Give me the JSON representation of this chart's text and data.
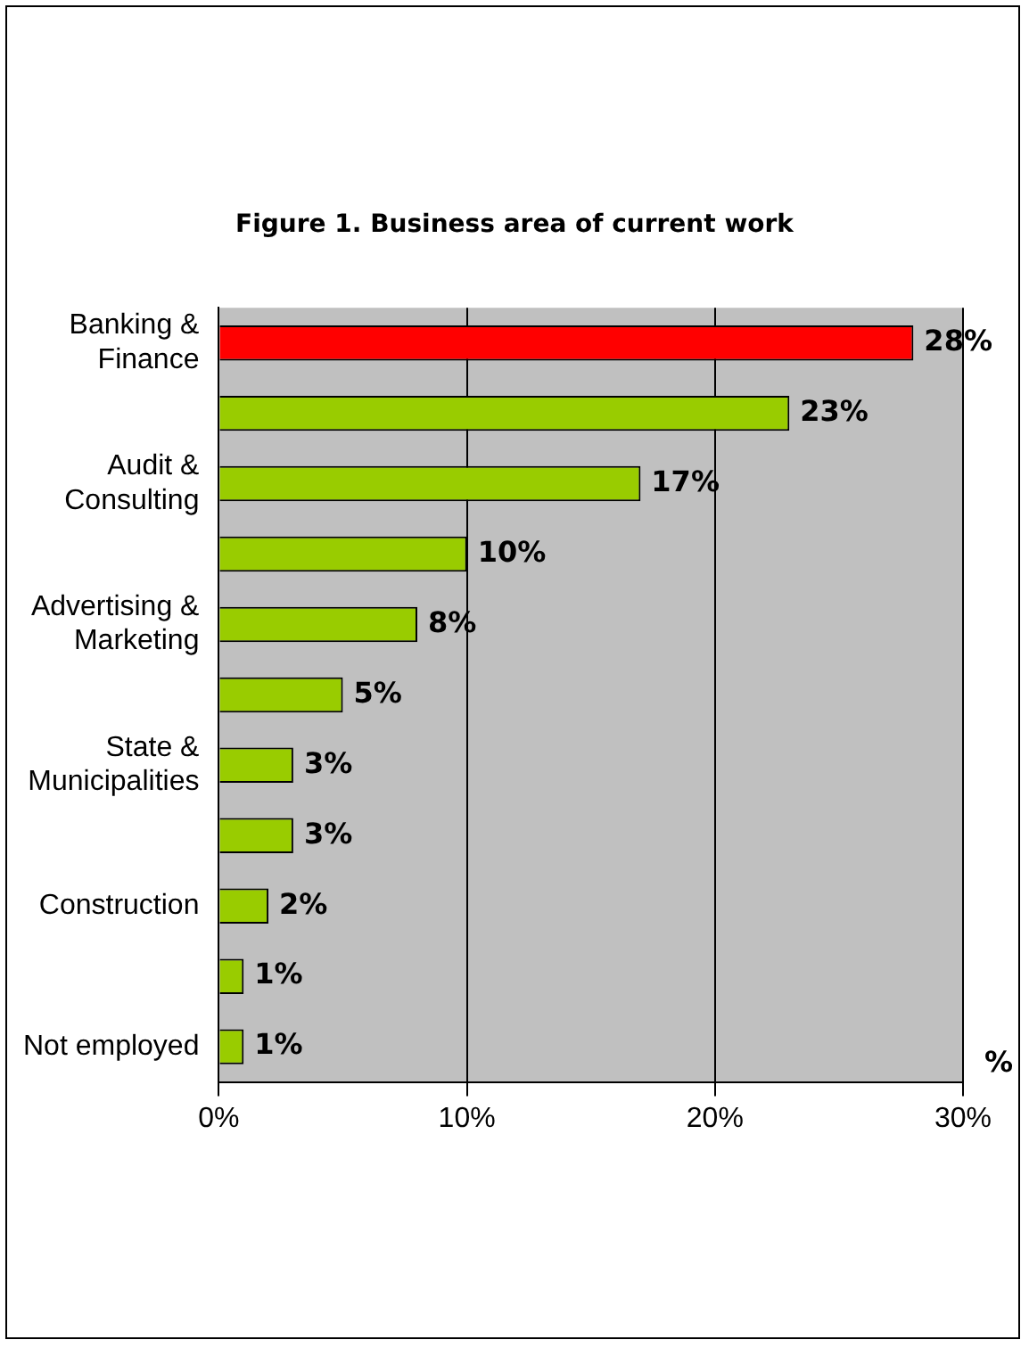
{
  "chart_data": {
    "type": "bar",
    "orientation": "horizontal",
    "title": "Figure 1. Business area of current work",
    "xlabel": "%",
    "categories": [
      "Banking & Finance",
      null,
      "Audit & Consulting",
      null,
      "Advertising & Marketing",
      null,
      "State & Municipalities",
      null,
      "Construction",
      null,
      "Not employed"
    ],
    "values": [
      28,
      23,
      17,
      10,
      8,
      5,
      3,
      3,
      2,
      1,
      1
    ],
    "colors": [
      "#ff0000",
      "#99cc00",
      "#99cc00",
      "#99cc00",
      "#99cc00",
      "#99cc00",
      "#99cc00",
      "#99cc00",
      "#99cc00",
      "#99cc00",
      "#99cc00"
    ],
    "value_labels": [
      "28%",
      "23%",
      "17%",
      "10%",
      "8%",
      "5%",
      "3%",
      "3%",
      "2%",
      "1%",
      "1%"
    ],
    "xlim": [
      0,
      30
    ],
    "xticks": [
      {
        "value": 0,
        "label": "0%"
      },
      {
        "value": 10,
        "label": "10%"
      },
      {
        "value": 20,
        "label": "20%"
      },
      {
        "value": 30,
        "label": "30%"
      }
    ],
    "grid": "x",
    "legend": false
  }
}
